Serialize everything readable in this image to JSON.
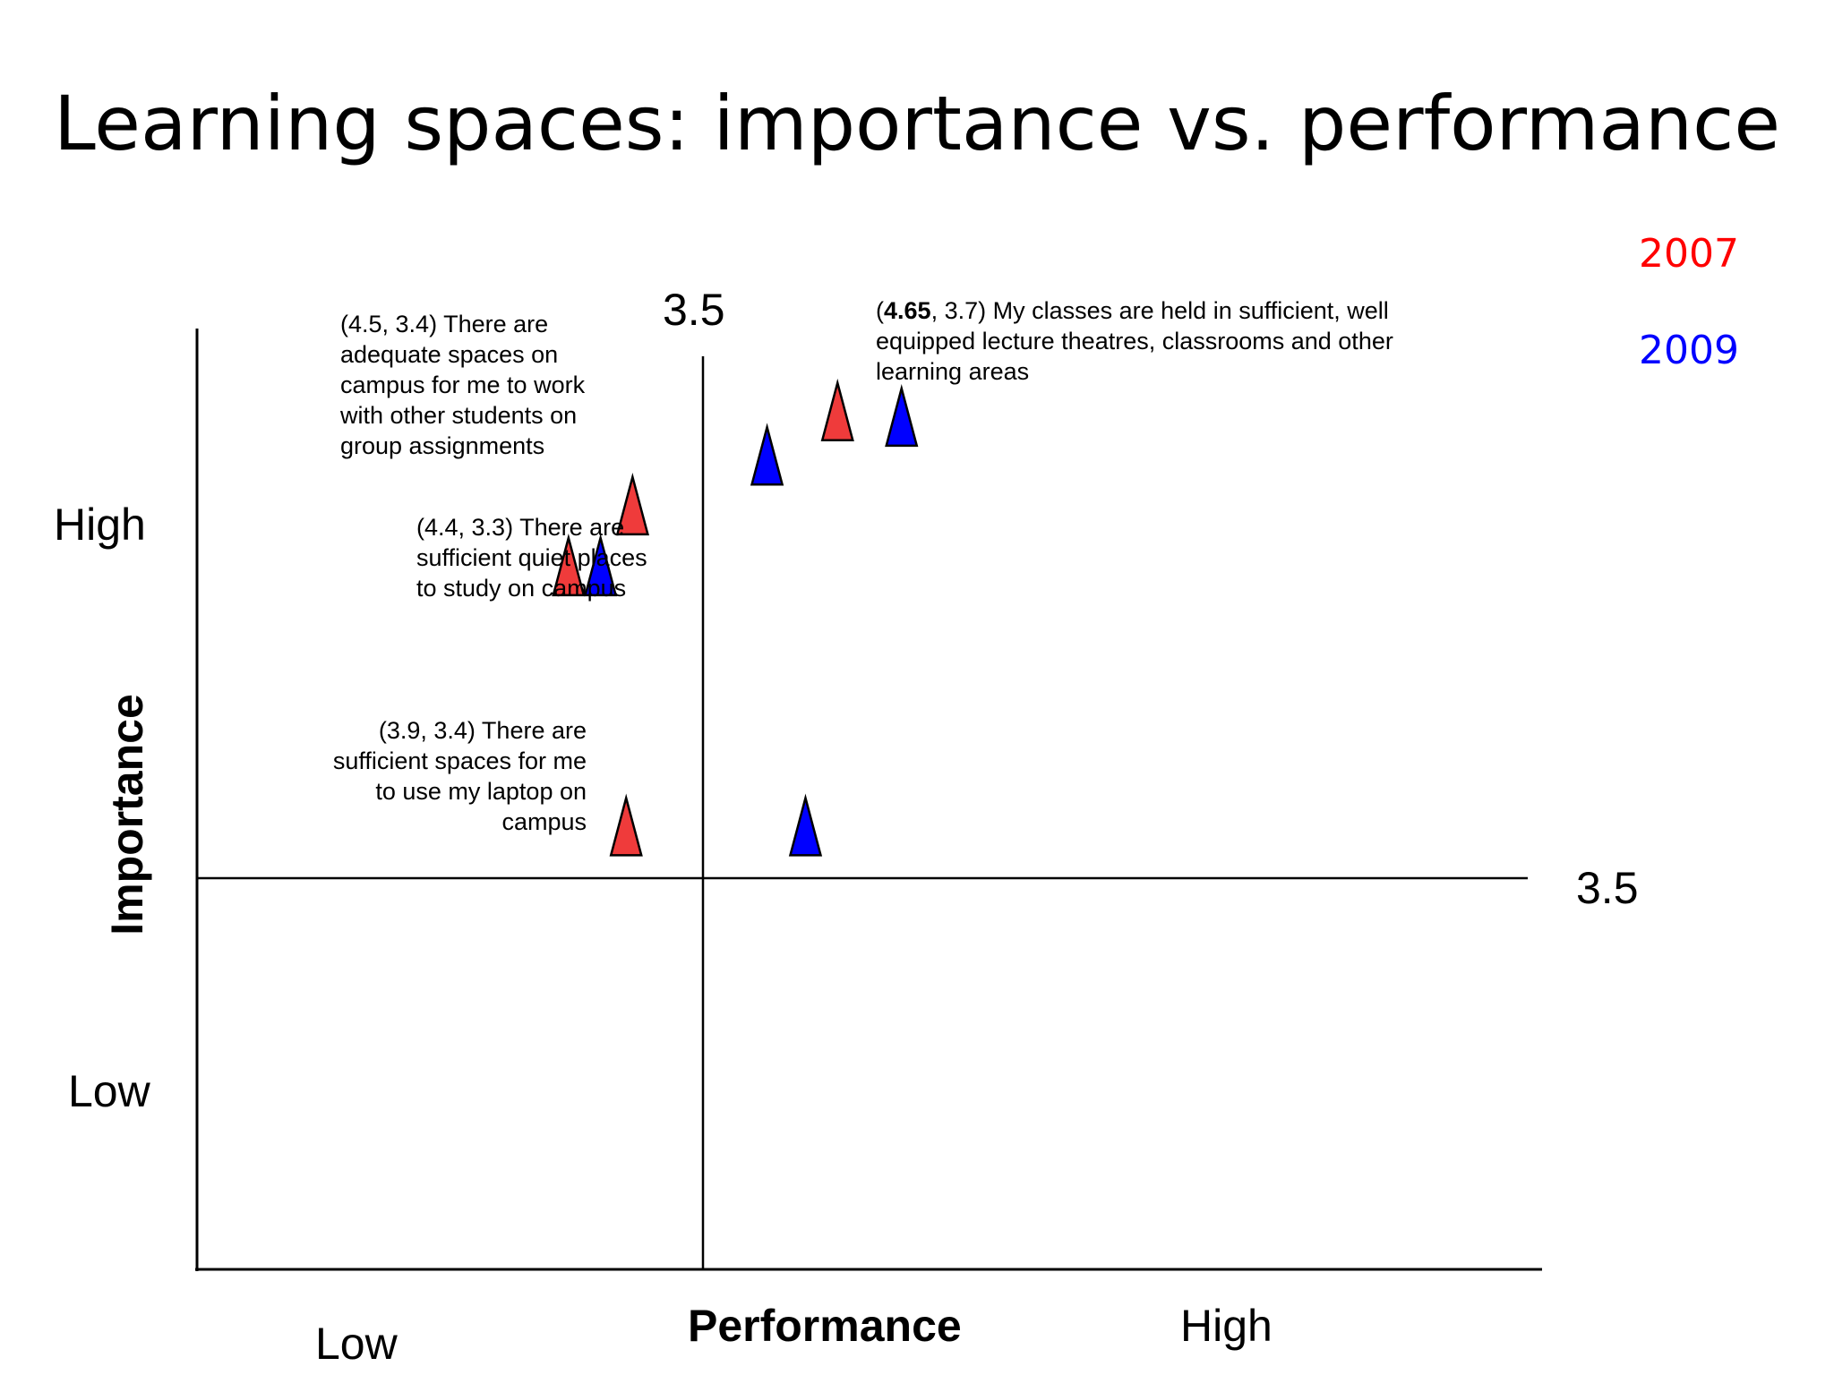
{
  "slide": {
    "title": "Learning spaces: importance vs. performance"
  },
  "legend": {
    "items": [
      {
        "label": "2007",
        "color": "#ff0000"
      },
      {
        "label": "2009",
        "color": "#0000ff"
      }
    ]
  },
  "chart_data": {
    "type": "scatter",
    "title": "Learning spaces: importance vs. performance",
    "xlabel": "Performance",
    "ylabel": "Importance",
    "x_axis_labels": {
      "low": "Low",
      "high": "High"
    },
    "y_axis_labels": {
      "low": "Low",
      "high": "High"
    },
    "divider_x_label": "3.5",
    "divider_y_label": "3.5",
    "divider_x": 3.5,
    "divider_y": 3.5,
    "xlim": [
      2.7,
      4.8
    ],
    "ylim": [
      3.1,
      4.8
    ],
    "marker": "triangle",
    "grid": false,
    "legend_placement": "top-right",
    "series": [
      {
        "name": "2007",
        "color": "#ef3b3b",
        "points": [
          {
            "x": 3.38,
            "y": 4.48
          },
          {
            "x": 3.28,
            "y": 4.37
          },
          {
            "x": 3.37,
            "y": 3.9
          },
          {
            "x": 3.7,
            "y": 4.65
          }
        ]
      },
      {
        "name": "2009",
        "color": "#0000ff",
        "points": [
          {
            "x": 3.33,
            "y": 4.37
          },
          {
            "x": 3.59,
            "y": 4.57
          },
          {
            "x": 3.65,
            "y": 3.9
          },
          {
            "x": 3.8,
            "y": 4.64
          }
        ]
      }
    ],
    "annotations": [
      {
        "prefix": "(",
        "bold": "",
        "text": "4.5, 3.4) There are adequate spaces on campus for me to work with other students on group assignments"
      },
      {
        "prefix": "(",
        "bold": "4.65",
        "text": ", 3.7) My classes are held in sufficient, well equipped lecture theatres, classrooms and other learning areas"
      },
      {
        "prefix": "(",
        "bold": "",
        "text": "4.4, 3.3) There are sufficient quiet places to study on campus"
      },
      {
        "prefix": "(",
        "bold": "",
        "text": "3.9, 3.4) There are sufficient spaces for me to use my laptop on campus"
      }
    ]
  }
}
